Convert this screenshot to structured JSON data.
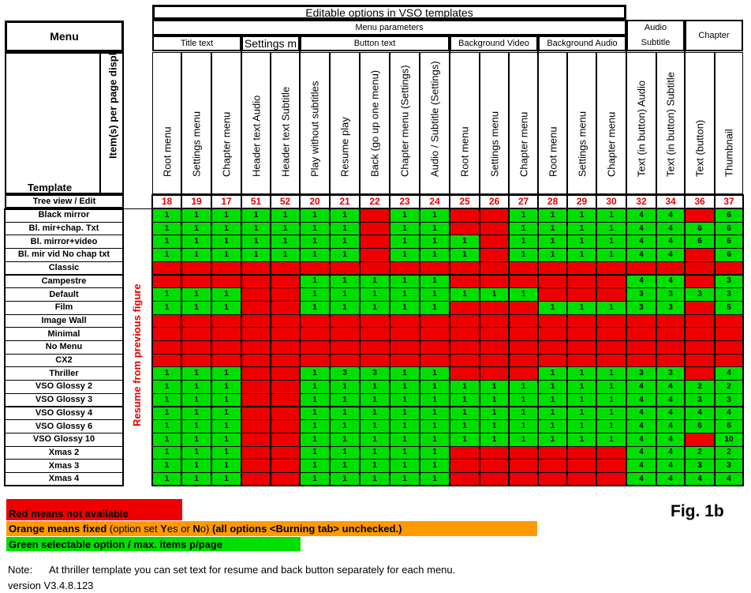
{
  "colors": {
    "red": "#ee0000",
    "green": "#00e000",
    "orange": "#ff9900",
    "number": "#e30000"
  },
  "header": {
    "title": "Editable options in VSO templates",
    "menu_label": "Menu",
    "menu_parameters": "Menu parameters",
    "audio_subtitle_top": "Audio",
    "audio_subtitle_bottom": "Subtitle",
    "chapter": "Chapter",
    "groups": [
      "Title text",
      "Settings m",
      "Button text",
      "Background Video",
      "Background Audio"
    ],
    "template_label": "Template",
    "items_per_page_label": "Item(s) per page displ.",
    "tree_view_label": "Tree view / Edit"
  },
  "columns": [
    {
      "label": "Root menu",
      "number": "18"
    },
    {
      "label": "Settings menu",
      "number": "19"
    },
    {
      "label": "Chapter menu",
      "number": "17"
    },
    {
      "label": "Header text Audio",
      "number": "51"
    },
    {
      "label": "Header text Subtitle",
      "number": "52"
    },
    {
      "label": "Play without subtitles",
      "number": "20"
    },
    {
      "label": "Resume play",
      "number": "21"
    },
    {
      "label": "Back (go up one menu)",
      "number": "22"
    },
    {
      "label": "Chapter menu (Settings)",
      "number": "23"
    },
    {
      "label": "Audio / Subtitle (Settings)",
      "number": "24"
    },
    {
      "label": "Root menu",
      "number": "25"
    },
    {
      "label": "Settings menu",
      "number": "26"
    },
    {
      "label": "Chapter menu",
      "number": "27"
    },
    {
      "label": "Root menu",
      "number": "28"
    },
    {
      "label": "Settings menu",
      "number": "29"
    },
    {
      "label": "Chapter menu",
      "number": "30"
    },
    {
      "label": "Text (in button) Audio",
      "number": "32"
    },
    {
      "label": "Text (in button) Subtitle",
      "number": "34"
    },
    {
      "label": "Text (button)",
      "number": "36"
    },
    {
      "label": "Thumbnail",
      "number": "37"
    }
  ],
  "resume_label": "Resume from previous figure",
  "rows": [
    {
      "name": "Black mirror",
      "cells": [
        "1",
        "1",
        "1",
        "1",
        "1",
        "1",
        "1",
        "R",
        "1",
        "1",
        "R",
        "R",
        "1",
        "1",
        "1",
        "1",
        "4",
        "4",
        "R",
        "6"
      ]
    },
    {
      "name": "Bl. mir+chap. Txt",
      "cells": [
        "1",
        "1",
        "1",
        "1",
        "1",
        "1",
        "1",
        "R",
        "1",
        "1",
        "R",
        "R",
        "1",
        "1",
        "1",
        "1",
        "4",
        "4",
        "6",
        "6"
      ]
    },
    {
      "name": "Bl. mirror+video",
      "cells": [
        "1",
        "1",
        "1",
        "1",
        "1",
        "1",
        "1",
        "R",
        "1",
        "1",
        "1",
        "R",
        "1",
        "1",
        "1",
        "1",
        "4",
        "4",
        "6",
        "6"
      ]
    },
    {
      "name": "Bl. mir vid No chap txt",
      "cells": [
        "1",
        "1",
        "1",
        "1",
        "1",
        "1",
        "1",
        "R",
        "1",
        "1",
        "1",
        "R",
        "1",
        "1",
        "1",
        "1",
        "4",
        "4",
        "R",
        "6"
      ]
    },
    {
      "name": "Classic",
      "cells": [
        "R",
        "R",
        "R",
        "R",
        "R",
        "R",
        "R",
        "R",
        "R",
        "R",
        "R",
        "R",
        "R",
        "R",
        "R",
        "R",
        "R",
        "R",
        "R",
        "R"
      ]
    },
    {
      "name": "Campestre",
      "cells": [
        "R",
        "R",
        "R",
        "R",
        "R",
        "1",
        "1",
        "1",
        "1",
        "1",
        "R",
        "R",
        "R",
        "R",
        "R",
        "R",
        "4",
        "4",
        "R",
        "3"
      ]
    },
    {
      "name": "Default",
      "cells": [
        "1",
        "1",
        "1",
        "R",
        "R",
        "1",
        "1",
        "1",
        "1",
        "1",
        "1",
        "1",
        "1",
        "R",
        "R",
        "R",
        "3",
        "3",
        "3",
        "3"
      ]
    },
    {
      "name": "Film",
      "cells": [
        "1",
        "1",
        "1",
        "R",
        "R",
        "1",
        "1",
        "1",
        "1",
        "1",
        "R",
        "R",
        "R",
        "1",
        "1",
        "1",
        "3",
        "3",
        "R",
        "5"
      ]
    },
    {
      "name": "Image Wall",
      "cells": [
        "R",
        "R",
        "R",
        "R",
        "R",
        "R",
        "R",
        "R",
        "R",
        "R",
        "R",
        "R",
        "R",
        "R",
        "R",
        "R",
        "R",
        "R",
        "R",
        "R"
      ]
    },
    {
      "name": "Minimal",
      "cells": [
        "R",
        "R",
        "R",
        "R",
        "R",
        "R",
        "R",
        "R",
        "R",
        "R",
        "R",
        "R",
        "R",
        "R",
        "R",
        "R",
        "R",
        "R",
        "R",
        "R"
      ]
    },
    {
      "name": "No Menu",
      "cells": [
        "R",
        "R",
        "R",
        "R",
        "R",
        "R",
        "R",
        "R",
        "R",
        "R",
        "R",
        "R",
        "R",
        "R",
        "R",
        "R",
        "R",
        "R",
        "R",
        "R"
      ]
    },
    {
      "name": "CX2",
      "cells": [
        "R",
        "R",
        "R",
        "R",
        "R",
        "R",
        "R",
        "R",
        "R",
        "R",
        "R",
        "R",
        "R",
        "R",
        "R",
        "R",
        "R",
        "R",
        "R",
        "R"
      ]
    },
    {
      "name": "Thriller",
      "cells": [
        "1",
        "1",
        "1",
        "R",
        "R",
        "1",
        "3",
        "3",
        "1",
        "1",
        "R",
        "R",
        "R",
        "1",
        "1",
        "1",
        "3",
        "3",
        "R",
        "4"
      ]
    },
    {
      "name": "VSO Glossy 2",
      "cells": [
        "1",
        "1",
        "1",
        "R",
        "R",
        "1",
        "1",
        "1",
        "1",
        "1",
        "1",
        "1",
        "1",
        "1",
        "1",
        "1",
        "4",
        "4",
        "2",
        "2"
      ]
    },
    {
      "name": "VSO Glossy 3",
      "cells": [
        "1",
        "1",
        "1",
        "R",
        "R",
        "1",
        "1",
        "1",
        "1",
        "1",
        "1",
        "1",
        "1",
        "1",
        "1",
        "1",
        "4",
        "4",
        "3",
        "3"
      ]
    },
    {
      "name": "VSO Glossy 4",
      "cells": [
        "1",
        "1",
        "1",
        "R",
        "R",
        "1",
        "1",
        "1",
        "1",
        "1",
        "1",
        "1",
        "1",
        "1",
        "1",
        "1",
        "4",
        "4",
        "4",
        "4"
      ]
    },
    {
      "name": "VSO Glossy 6",
      "cells": [
        "1",
        "1",
        "1",
        "R",
        "R",
        "1",
        "1",
        "1",
        "1",
        "1",
        "1",
        "1",
        "1",
        "1",
        "1",
        "1",
        "4",
        "4",
        "6",
        "6"
      ]
    },
    {
      "name": "VSO Glossy 10",
      "cells": [
        "1",
        "1",
        "1",
        "R",
        "R",
        "1",
        "1",
        "1",
        "1",
        "1",
        "1",
        "1",
        "1",
        "1",
        "1",
        "1",
        "4",
        "4",
        "R",
        "10"
      ]
    },
    {
      "name": "Xmas 2",
      "cells": [
        "1",
        "1",
        "1",
        "R",
        "R",
        "1",
        "1",
        "1",
        "1",
        "1",
        "R",
        "R",
        "R",
        "R",
        "R",
        "R",
        "4",
        "4",
        "2",
        "2"
      ]
    },
    {
      "name": "Xmas 3",
      "cells": [
        "1",
        "1",
        "1",
        "R",
        "R",
        "1",
        "1",
        "1",
        "1",
        "1",
        "R",
        "R",
        "R",
        "R",
        "R",
        "R",
        "4",
        "4",
        "3",
        "3"
      ]
    },
    {
      "name": "Xmas 4",
      "cells": [
        "1",
        "1",
        "1",
        "R",
        "R",
        "1",
        "1",
        "1",
        "1",
        "1",
        "R",
        "R",
        "R",
        "R",
        "R",
        "R",
        "4",
        "4",
        "4",
        "4"
      ]
    }
  ],
  "legend": {
    "red": "Red means not available",
    "orange_pre": "Orange means fixed",
    "orange_mid": " (option set ",
    "orange_yes_rest": "es or ",
    "orange_no_rest": "o) ",
    "orange_post": "(all options <Burning tab> unchecked.)",
    "green": "Green selectable option / max. items p/page"
  },
  "figure_label": "Fig. 1b",
  "note": "Note:      At thriller template you can set text for resume and back button separately for each menu.",
  "version": "version V3.4.8.123"
}
